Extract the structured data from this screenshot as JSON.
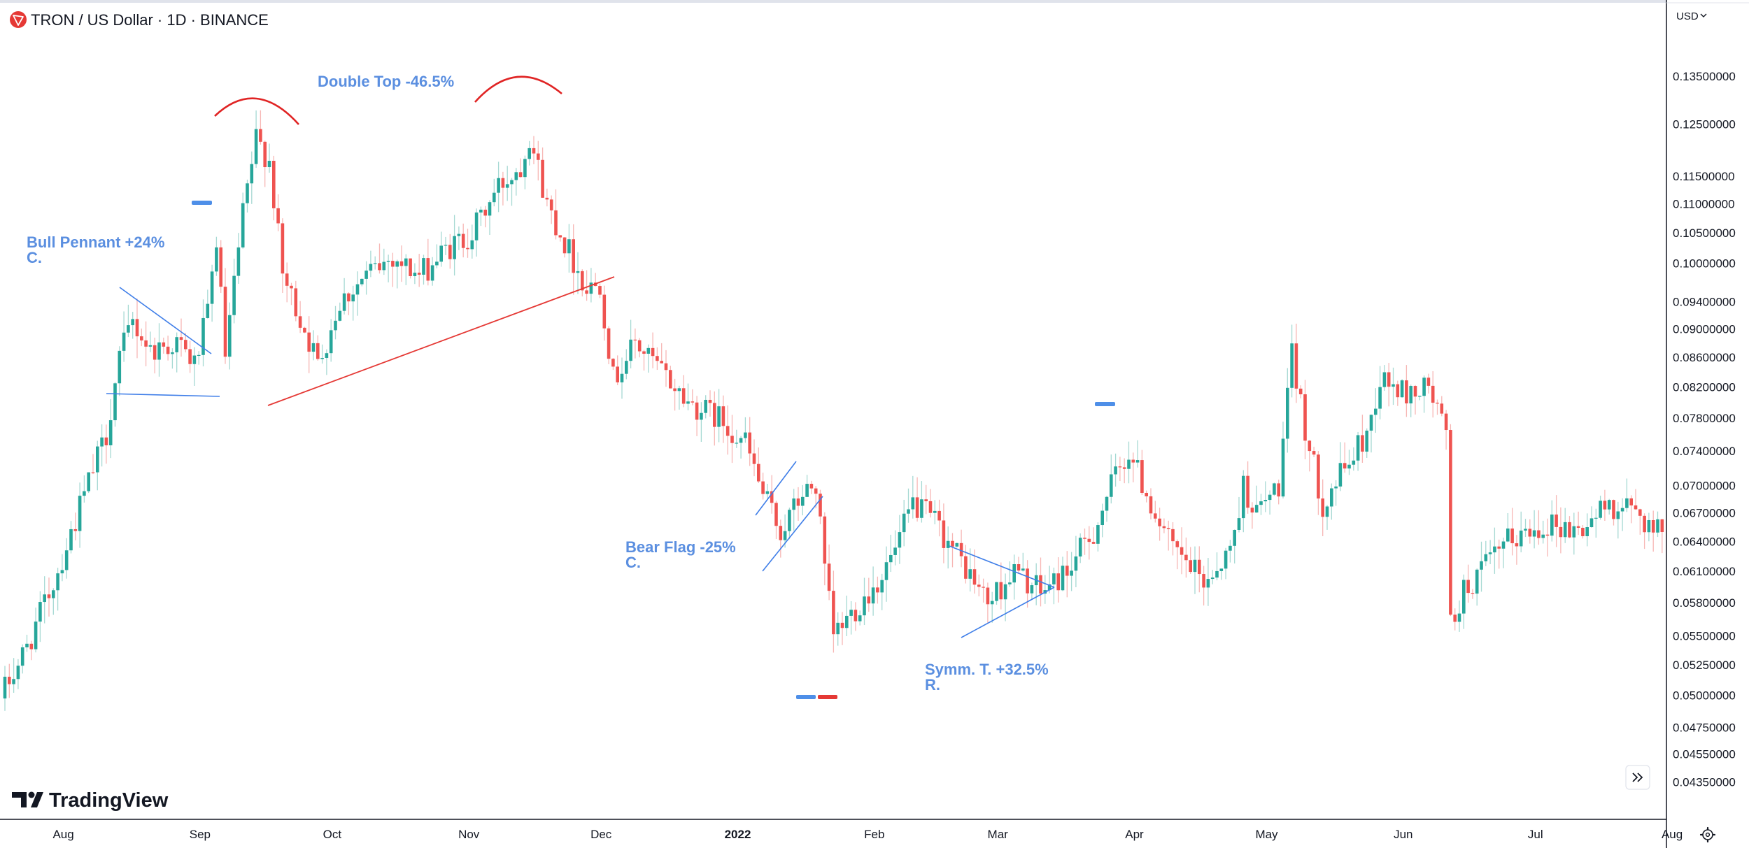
{
  "header": {
    "symbol_title": "TRON / US Dollar · 1D · BINANCE",
    "currency_selector": "USD"
  },
  "branding": {
    "name": "TradingView"
  },
  "chart_data": {
    "type": "candlestick",
    "title": "TRON / US Dollar · 1D · BINANCE",
    "y_scale": "log",
    "ylim": [
      0.042,
      0.141
    ],
    "y_ticks": [
      "0.13500000",
      "0.12500000",
      "0.11500000",
      "0.11000000",
      "0.10500000",
      "0.10000000",
      "0.09400000",
      "0.09000000",
      "0.08600000",
      "0.08200000",
      "0.07800000",
      "0.07400000",
      "0.07000000",
      "0.06700000",
      "0.06400000",
      "0.06100000",
      "0.05800000",
      "0.05500000",
      "0.05250000",
      "0.05000000",
      "0.04750000",
      "0.04550000",
      "0.04350000"
    ],
    "x_ticks": [
      "Aug",
      "Sep",
      "Oct",
      "Nov",
      "Dec",
      "2022",
      "Feb",
      "Mar",
      "Apr",
      "May",
      "Jun",
      "Jul",
      "Aug"
    ],
    "x_range": [
      "2021-07-20",
      "2022-08-07"
    ],
    "colors": {
      "up": "#26a69a",
      "down": "#ef5350",
      "wick_up": "#a6d9d3",
      "wick_down": "#f7b7b5"
    },
    "price_path": [
      [
        "2021-07-20",
        0.0505
      ],
      [
        "2021-07-25",
        0.054
      ],
      [
        "2021-08-01",
        0.061
      ],
      [
        "2021-08-07",
        0.069
      ],
      [
        "2021-08-12",
        0.076
      ],
      [
        "2021-08-15",
        0.086
      ],
      [
        "2021-08-18",
        0.091
      ],
      [
        "2021-08-22",
        0.087
      ],
      [
        "2021-08-28",
        0.088
      ],
      [
        "2021-09-01",
        0.085
      ],
      [
        "2021-09-04",
        0.092
      ],
      [
        "2021-09-06",
        0.104
      ],
      [
        "2021-09-08",
        0.086
      ],
      [
        "2021-09-12",
        0.108
      ],
      [
        "2021-09-15",
        0.122
      ],
      [
        "2021-09-18",
        0.118
      ],
      [
        "2021-09-21",
        0.098
      ],
      [
        "2021-09-26",
        0.09
      ],
      [
        "2021-09-29",
        0.085
      ],
      [
        "2021-10-04",
        0.094
      ],
      [
        "2021-10-10",
        0.098
      ],
      [
        "2021-10-16",
        0.101
      ],
      [
        "2021-10-22",
        0.098
      ],
      [
        "2021-10-28",
        0.102
      ],
      [
        "2021-11-03",
        0.105
      ],
      [
        "2021-11-09",
        0.113
      ],
      [
        "2021-11-14",
        0.117
      ],
      [
        "2021-11-16",
        0.123
      ],
      [
        "2021-11-20",
        0.11
      ],
      [
        "2021-11-25",
        0.102
      ],
      [
        "2021-11-29",
        0.096
      ],
      [
        "2021-12-02",
        0.097
      ],
      [
        "2021-12-05",
        0.083
      ],
      [
        "2021-12-10",
        0.088
      ],
      [
        "2021-12-16",
        0.084
      ],
      [
        "2021-12-22",
        0.08
      ],
      [
        "2021-12-29",
        0.078
      ],
      [
        "2022-01-04",
        0.075
      ],
      [
        "2022-01-08",
        0.069
      ],
      [
        "2022-01-12",
        0.065
      ],
      [
        "2022-01-17",
        0.069
      ],
      [
        "2022-01-20",
        0.07
      ],
      [
        "2022-01-22",
        0.061
      ],
      [
        "2022-01-24",
        0.055
      ],
      [
        "2022-01-28",
        0.057
      ],
      [
        "2022-02-03",
        0.06
      ],
      [
        "2022-02-07",
        0.063
      ],
      [
        "2022-02-11",
        0.068
      ],
      [
        "2022-02-16",
        0.066
      ],
      [
        "2022-02-22",
        0.062
      ],
      [
        "2022-02-28",
        0.058
      ],
      [
        "2022-03-06",
        0.061
      ],
      [
        "2022-03-12",
        0.059
      ],
      [
        "2022-03-18",
        0.061
      ],
      [
        "2022-03-24",
        0.065
      ],
      [
        "2022-03-28",
        0.07
      ],
      [
        "2022-04-01",
        0.074
      ],
      [
        "2022-04-06",
        0.068
      ],
      [
        "2022-04-11",
        0.063
      ],
      [
        "2022-04-18",
        0.06
      ],
      [
        "2022-04-24",
        0.063
      ],
      [
        "2022-04-27",
        0.07
      ],
      [
        "2022-04-30",
        0.067
      ],
      [
        "2022-05-05",
        0.07
      ],
      [
        "2022-05-08",
        0.086
      ],
      [
        "2022-05-12",
        0.074
      ],
      [
        "2022-05-15",
        0.068
      ],
      [
        "2022-05-20",
        0.072
      ],
      [
        "2022-05-25",
        0.076
      ],
      [
        "2022-05-28",
        0.083
      ],
      [
        "2022-06-03",
        0.081
      ],
      [
        "2022-06-08",
        0.082
      ],
      [
        "2022-06-12",
        0.076
      ],
      [
        "2022-06-13",
        0.056
      ],
      [
        "2022-06-16",
        0.059
      ],
      [
        "2022-06-20",
        0.061
      ],
      [
        "2022-06-26",
        0.064
      ],
      [
        "2022-07-05",
        0.066
      ],
      [
        "2022-07-12",
        0.065
      ],
      [
        "2022-07-19",
        0.068
      ],
      [
        "2022-07-25",
        0.067
      ],
      [
        "2022-07-30",
        0.065
      ],
      [
        "2022-08-02",
        0.069
      ],
      [
        "2022-08-07",
        0.069
      ]
    ],
    "annotations": [
      {
        "title": "Bull Pennant +24%",
        "subtitle": "C."
      },
      {
        "title": "Double Top -46.5%",
        "subtitle": ""
      },
      {
        "title": "Bear Flag -25%",
        "subtitle": "C."
      },
      {
        "title": "Symm. T. +32.5%",
        "subtitle": "R."
      }
    ],
    "grid": false
  },
  "icons": {
    "tron_logo": "tron-logo-icon",
    "chevron": "chevron-down-icon",
    "scroll_forward": "double-chevron-right-icon",
    "settings": "gear-icon"
  }
}
